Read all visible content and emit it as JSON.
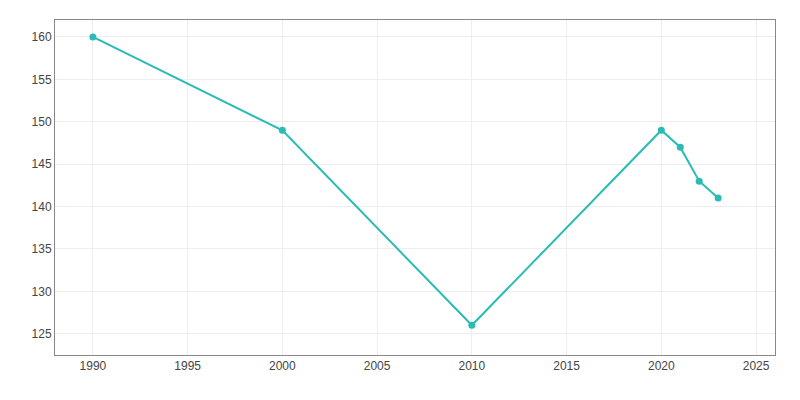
{
  "chart_data": {
    "type": "line",
    "x": [
      1990,
      2000,
      2010,
      2020,
      2021,
      2022,
      2023
    ],
    "values": [
      160,
      149,
      126,
      149,
      147,
      143,
      141
    ],
    "color": "#2abcb4",
    "marker": "circle",
    "line_style": "solid",
    "xlim": [
      1988,
      2026
    ],
    "ylim": [
      122.5,
      162
    ],
    "xticks": [
      1990,
      1995,
      2000,
      2005,
      2010,
      2015,
      2020,
      2025
    ],
    "yticks": [
      125,
      130,
      135,
      140,
      145,
      150,
      155,
      160
    ],
    "grid": true
  }
}
